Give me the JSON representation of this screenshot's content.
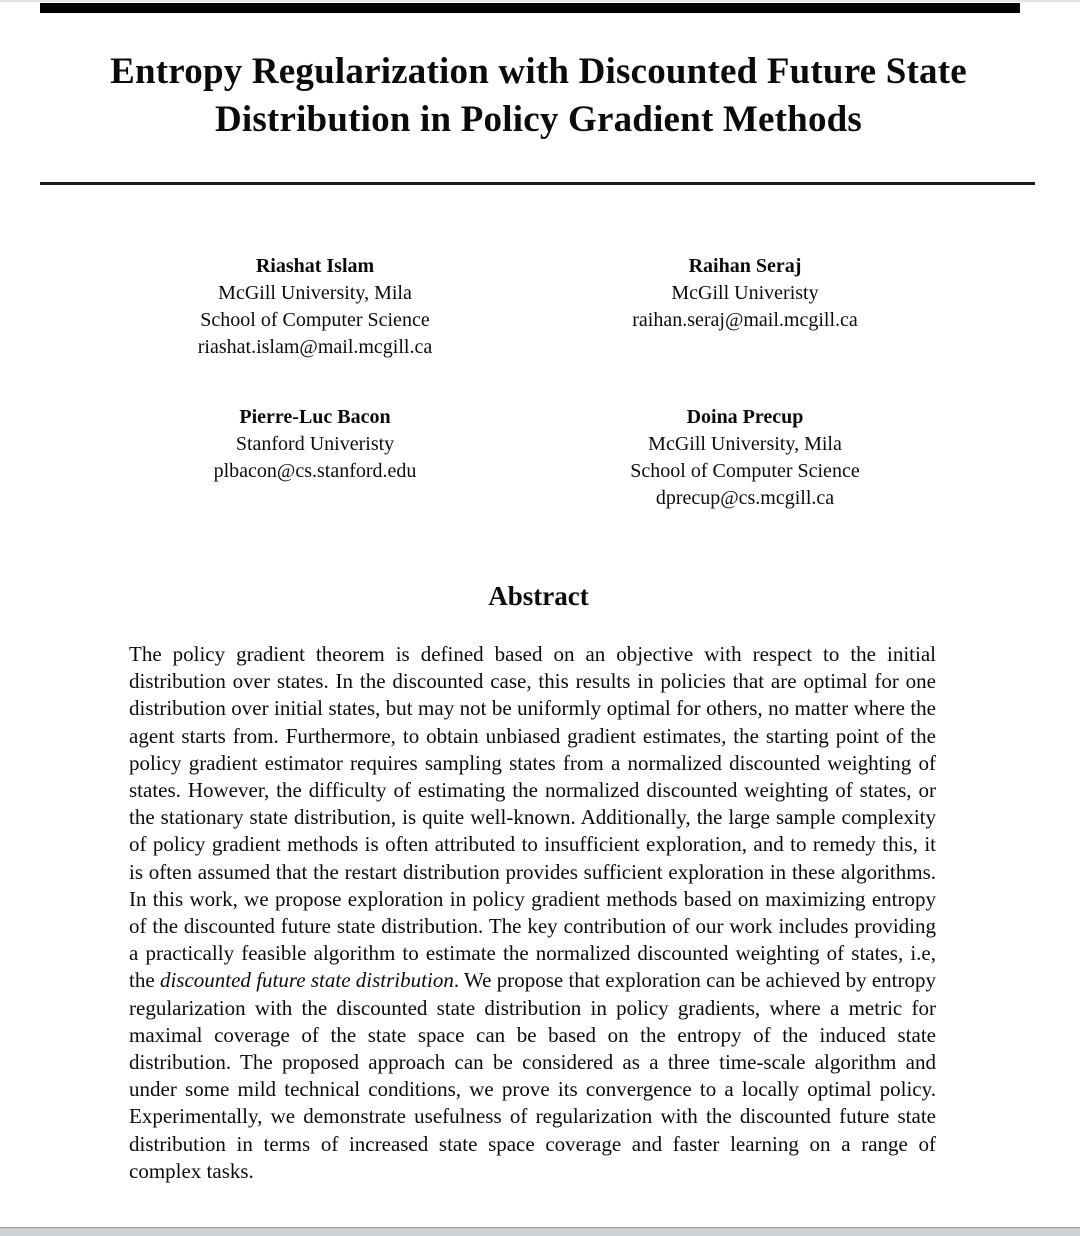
{
  "document": {
    "title_line1": "Entropy Regularization with Discounted Future State",
    "title_line2": "Distribution in Policy Gradient Methods"
  },
  "authors": {
    "row1": [
      {
        "name": "Riashat Islam",
        "affil1": "McGill University, Mila",
        "affil2": "School of Computer Science",
        "email": "riashat.islam@mail.mcgill.ca"
      },
      {
        "name": "Raihan Seraj",
        "affil1": "McGill Univeristy",
        "email": "raihan.seraj@mail.mcgill.ca"
      }
    ],
    "row2": [
      {
        "name": "Pierre-Luc Bacon",
        "affil1": "Stanford Univeristy",
        "email": "plbacon@cs.stanford.edu"
      },
      {
        "name": "Doina Precup",
        "affil1": "McGill University, Mila",
        "affil2": "School of Computer Science",
        "email": "dprecup@cs.mcgill.ca"
      }
    ]
  },
  "abstract": {
    "heading": "Abstract",
    "text_before_italic": "The policy gradient theorem is defined based on an objective with respect to the initial distribution over states. In the discounted case, this results in policies that are optimal for one distribution over initial states, but may not be uniformly optimal for others, no matter where the agent starts from. Furthermore, to obtain unbiased gradient estimates, the starting point of the policy gradient estimator requires sampling states from a normalized discounted weighting of states. However, the difficulty of estimating the normalized discounted weighting of states, or the stationary state distribution, is quite well-known. Additionally, the large sample complexity of policy gradient methods is often attributed to insufficient exploration, and to remedy this, it is often assumed that the restart distribution provides sufficient exploration in these algorithms. In this work, we propose exploration in policy gradient methods based on maximizing entropy of the discounted future state distribution. The key contribution of our work includes providing a practically feasible algorithm to estimate the normalized discounted weighting of states, i.e, the ",
    "italic_phrase": "discounted future state distribution",
    "text_after_italic": ". We propose that exploration can be achieved by entropy regularization with the discounted state distribution in policy gradients, where a metric for maximal coverage of the state space can be based on the entropy of the induced state distribution. The proposed approach can be considered as a three time-scale algorithm and under some mild technical conditions, we prove its convergence to a locally optimal policy. Experimentally, we demonstrate usefulness of regularization with the discounted future state distribution in terms of increased state space coverage and faster learning on a range of complex tasks."
  }
}
